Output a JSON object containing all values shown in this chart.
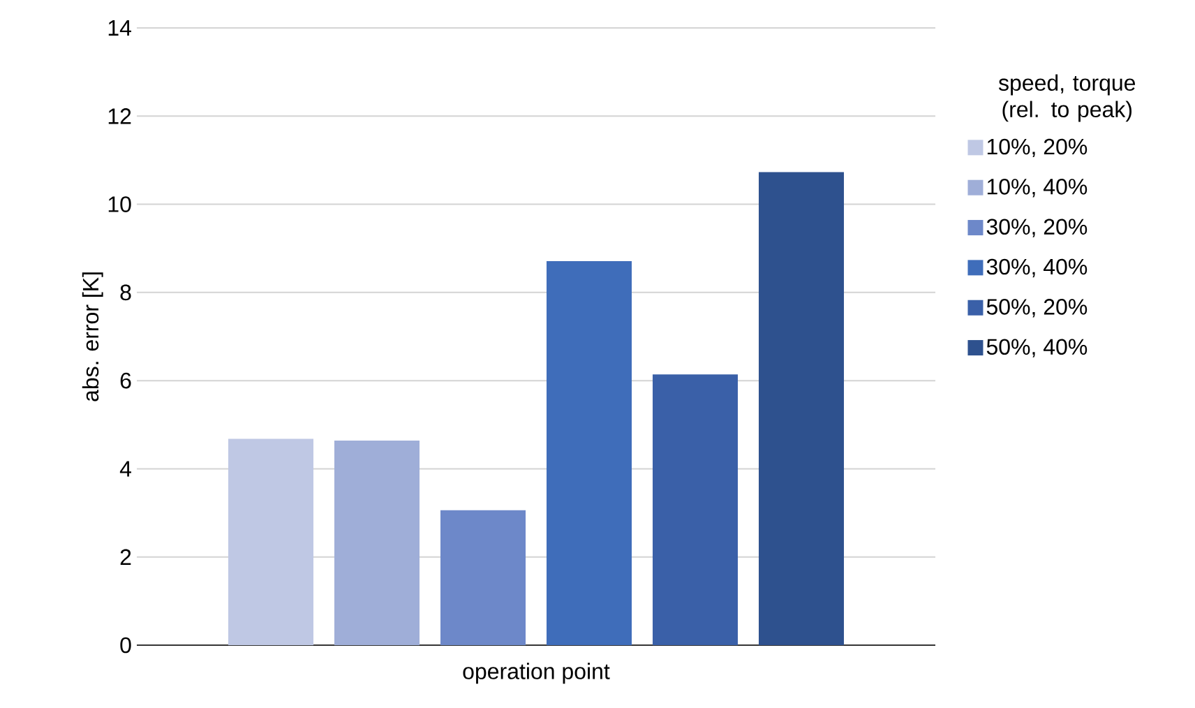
{
  "chart_data": {
    "type": "bar",
    "xlabel": "operation point",
    "ylabel": "abs. error [K]",
    "legend_title": "speed, torque (rel. to peak)",
    "categories": [
      null
    ],
    "series": [
      {
        "name": "10%, 20%",
        "color": "#bfc8e4",
        "values": [
          4.68
        ]
      },
      {
        "name": "10%, 40%",
        "color": "#9faed8",
        "values": [
          4.64
        ]
      },
      {
        "name": "30%, 20%",
        "color": "#6d88c9",
        "values": [
          3.06
        ]
      },
      {
        "name": "30%, 40%",
        "color": "#3f6dba",
        "values": [
          8.71
        ]
      },
      {
        "name": "50%, 20%",
        "color": "#3a60a8",
        "values": [
          6.14
        ]
      },
      {
        "name": "50%, 40%",
        "color": "#2e518e",
        "values": [
          10.73
        ]
      }
    ],
    "ylim": [
      0,
      14
    ],
    "yticks": [
      0,
      2,
      4,
      6,
      8,
      10,
      12,
      14
    ],
    "grid": "y",
    "legend": "right"
  }
}
